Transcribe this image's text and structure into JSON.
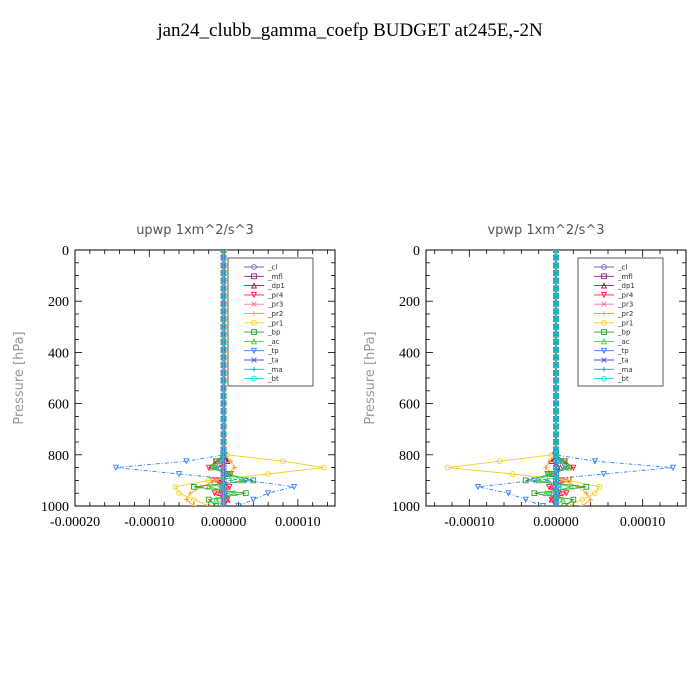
{
  "title": "jan24_clubb_gamma_coefp  BUDGET at245E,-2N",
  "legend_entries": [
    "_cl",
    "_mfl",
    "_dp1",
    "_pr4",
    "_pr3",
    "_pr2",
    "_pr1",
    "_bp",
    "_ac",
    "_tp",
    "_ta",
    "_ma",
    "_bt"
  ],
  "series_colors": {
    "_cl": "#7f5fbf",
    "_mfl": "#8b1a8b",
    "_dp1": "#b0103a",
    "_pr4": "#ff1f3f",
    "_pr3": "#ff6f9f",
    "_pr2": "#ffa030",
    "_pr1": "#f2d020",
    "_bp": "#20a020",
    "_ac": "#40d040",
    "_tp": "#2f80ff",
    "_ta": "#5050e0",
    "_ma": "#30a0c0",
    "_bt": "#00e0e0"
  },
  "chart_data": [
    {
      "type": "line",
      "title": "upwp   1xm^2/s^3",
      "ylabel": "Pressure [hPa]",
      "xlim": [
        -0.0002,
        0.00015
      ],
      "ylim": [
        1000,
        0
      ],
      "xticks": [
        -0.0002,
        -0.0001,
        0.0,
        0.0001
      ],
      "xtick_labels": [
        "-0.00020",
        "-0.00010",
        "0.00000",
        "0.00010"
      ],
      "yticks": [
        0,
        200,
        400,
        600,
        800,
        1000
      ],
      "ytick_labels": [
        "0",
        "200",
        "400",
        "600",
        "800",
        "1000"
      ],
      "legend_placement": "top-right",
      "y": [
        0,
        30,
        60,
        90,
        120,
        150,
        180,
        210,
        240,
        270,
        300,
        330,
        360,
        390,
        420,
        450,
        480,
        510,
        540,
        570,
        600,
        630,
        660,
        690,
        720,
        750,
        780,
        800,
        825,
        850,
        875,
        900,
        925,
        950,
        975,
        1000
      ],
      "series": [
        {
          "name": "_cl",
          "values": [
            0,
            0,
            0,
            0,
            0,
            0,
            0,
            0,
            0,
            0,
            0,
            0,
            0,
            0,
            0,
            0,
            0,
            0,
            0,
            0,
            0,
            0,
            0,
            0,
            0,
            0,
            0,
            0,
            0,
            0,
            0,
            0,
            0,
            0,
            0,
            0
          ]
        },
        {
          "name": "_mfl",
          "values": [
            0,
            0,
            0,
            0,
            0,
            0,
            0,
            0,
            0,
            0,
            0,
            0,
            0,
            0,
            0,
            0,
            0,
            0,
            0,
            0,
            0,
            0,
            0,
            0,
            0,
            0,
            0,
            0,
            0,
            0,
            0,
            0,
            0,
            0,
            0,
            0
          ]
        },
        {
          "name": "_dp1",
          "values": [
            0,
            0,
            0,
            0,
            0,
            0,
            0,
            0,
            0,
            0,
            0,
            0,
            0,
            0,
            0,
            0,
            0,
            0,
            0,
            0,
            0,
            0,
            0,
            0,
            0,
            0,
            0,
            0,
            5e-06,
            -5e-06,
            5e-06,
            -5e-06,
            5e-06,
            -5e-06,
            5e-06,
            0
          ]
        },
        {
          "name": "_pr4",
          "values": [
            0,
            0,
            0,
            0,
            0,
            0,
            0,
            0,
            0,
            0,
            0,
            0,
            0,
            0,
            0,
            0,
            0,
            0,
            0,
            0,
            0,
            0,
            0,
            0,
            0,
            0,
            0,
            2e-06,
            -1e-05,
            -2e-05,
            1e-05,
            -1.5e-05,
            8e-06,
            -1.2e-05,
            5e-06,
            0
          ]
        },
        {
          "name": "_pr3",
          "values": [
            0,
            0,
            0,
            0,
            0,
            0,
            0,
            0,
            0,
            0,
            0,
            0,
            0,
            0,
            0,
            0,
            0,
            0,
            0,
            0,
            0,
            0,
            0,
            0,
            0,
            0,
            0,
            0,
            -5e-06,
            -1e-05,
            5e-06,
            -8e-06,
            4e-06,
            -6e-06,
            3e-06,
            0
          ]
        },
        {
          "name": "_pr2",
          "values": [
            2e-06,
            2e-06,
            2e-06,
            2e-06,
            2e-06,
            2e-06,
            2e-06,
            2e-06,
            2e-06,
            2e-06,
            2e-06,
            2e-06,
            2e-06,
            2e-06,
            2e-06,
            2e-06,
            2e-06,
            2e-06,
            2e-06,
            2e-06,
            2e-06,
            2e-06,
            2e-06,
            2e-06,
            2e-06,
            2e-06,
            2e-06,
            3e-06,
            1e-05,
            1.5e-05,
            5e-06,
            -1e-05,
            -3e-05,
            -4.5e-05,
            -5e-05,
            -4e-05
          ]
        },
        {
          "name": "_pr1",
          "values": [
            0,
            0,
            0,
            0,
            0,
            0,
            0,
            0,
            0,
            0,
            0,
            0,
            0,
            0,
            0,
            0,
            0,
            0,
            0,
            0,
            0,
            0,
            0,
            0,
            0,
            0,
            0,
            5e-06,
            8e-05,
            0.000135,
            6e-05,
            -2e-05,
            -6.5e-05,
            -6e-05,
            -4e-05,
            -2e-05
          ]
        },
        {
          "name": "_bp",
          "values": [
            0,
            0,
            0,
            0,
            0,
            0,
            0,
            0,
            0,
            0,
            0,
            0,
            0,
            0,
            0,
            0,
            0,
            0,
            0,
            0,
            0,
            0,
            0,
            0,
            0,
            0,
            0,
            0,
            -1e-05,
            -1.5e-05,
            5e-06,
            4e-05,
            -4e-05,
            3e-05,
            -2e-05,
            -1e-05
          ]
        },
        {
          "name": "_ac",
          "values": [
            0,
            0,
            0,
            0,
            0,
            0,
            0,
            0,
            0,
            0,
            0,
            0,
            0,
            0,
            0,
            0,
            0,
            0,
            0,
            0,
            0,
            0,
            0,
            0,
            0,
            0,
            0,
            0,
            -5e-06,
            -1.5e-05,
            1e-05,
            2.5e-05,
            -2e-05,
            1.5e-05,
            -1e-05,
            0
          ]
        },
        {
          "name": "_tp",
          "values": [
            0,
            0,
            0,
            0,
            0,
            0,
            0,
            0,
            0,
            0,
            0,
            0,
            0,
            0,
            0,
            0,
            0,
            0,
            0,
            0,
            0,
            0,
            0,
            0,
            0,
            0,
            0,
            1e-06,
            -5e-05,
            -0.000145,
            -6e-05,
            3e-05,
            9.5e-05,
            6e-05,
            4e-05,
            2e-05
          ]
        },
        {
          "name": "_ta",
          "values": [
            0,
            0,
            0,
            0,
            0,
            0,
            0,
            0,
            0,
            0,
            0,
            0,
            0,
            0,
            0,
            0,
            0,
            0,
            0,
            0,
            0,
            0,
            0,
            0,
            0,
            0,
            0,
            0,
            0,
            0,
            0,
            0,
            0,
            0,
            0,
            0
          ]
        },
        {
          "name": "_ma",
          "values": [
            0,
            0,
            0,
            0,
            0,
            0,
            0,
            0,
            0,
            0,
            0,
            0,
            0,
            0,
            0,
            0,
            0,
            0,
            0,
            0,
            0,
            0,
            0,
            0,
            0,
            0,
            0,
            0,
            -5e-06,
            -1e-05,
            5e-06,
            1e-05,
            -5e-06,
            5e-06,
            0,
            0
          ]
        },
        {
          "name": "_bt",
          "values": [
            0,
            0,
            0,
            0,
            0,
            0,
            0,
            0,
            0,
            0,
            0,
            0,
            0,
            0,
            0,
            0,
            0,
            0,
            0,
            0,
            0,
            0,
            0,
            0,
            0,
            0,
            0,
            0,
            0,
            0,
            0,
            0,
            0,
            0,
            0,
            0
          ]
        }
      ]
    },
    {
      "type": "line",
      "title": "vpwp   1xm^2/s^3",
      "ylabel": "Pressure [hPa]",
      "xlim": [
        -0.00015,
        0.00015
      ],
      "ylim": [
        1000,
        0
      ],
      "xticks": [
        -0.0001,
        0.0,
        0.0001
      ],
      "xtick_labels": [
        "-0.00010",
        "0.00000",
        "0.00010"
      ],
      "yticks": [
        0,
        200,
        400,
        600,
        800,
        1000
      ],
      "ytick_labels": [
        "0",
        "200",
        "400",
        "600",
        "800",
        "1000"
      ],
      "legend_placement": "top-right",
      "y": [
        0,
        30,
        60,
        90,
        120,
        150,
        180,
        210,
        240,
        270,
        300,
        330,
        360,
        390,
        420,
        450,
        480,
        510,
        540,
        570,
        600,
        630,
        660,
        690,
        720,
        750,
        780,
        800,
        825,
        850,
        875,
        900,
        925,
        950,
        975,
        1000
      ],
      "series": [
        {
          "name": "_cl",
          "values": [
            0,
            0,
            0,
            0,
            0,
            0,
            0,
            0,
            0,
            0,
            0,
            0,
            0,
            0,
            0,
            0,
            0,
            0,
            0,
            0,
            0,
            0,
            0,
            0,
            0,
            0,
            0,
            0,
            0,
            0,
            0,
            0,
            0,
            0,
            0,
            0
          ]
        },
        {
          "name": "_mfl",
          "values": [
            0,
            0,
            0,
            0,
            0,
            0,
            0,
            0,
            0,
            0,
            0,
            0,
            0,
            0,
            0,
            0,
            0,
            0,
            0,
            0,
            0,
            0,
            0,
            0,
            0,
            0,
            0,
            0,
            0,
            0,
            0,
            0,
            0,
            0,
            0,
            0
          ]
        },
        {
          "name": "_dp1",
          "values": [
            0,
            0,
            0,
            0,
            0,
            0,
            0,
            0,
            0,
            0,
            0,
            0,
            0,
            0,
            0,
            0,
            0,
            0,
            0,
            0,
            0,
            0,
            0,
            0,
            0,
            0,
            0,
            0,
            -5e-06,
            5e-06,
            -5e-06,
            5e-06,
            -5e-06,
            5e-06,
            -5e-06,
            0
          ]
        },
        {
          "name": "_pr4",
          "values": [
            0,
            0,
            0,
            0,
            0,
            0,
            0,
            0,
            0,
            0,
            0,
            0,
            0,
            0,
            0,
            0,
            0,
            0,
            0,
            0,
            0,
            0,
            0,
            0,
            0,
            0,
            0,
            -2e-06,
            1e-05,
            2e-05,
            -1e-05,
            1.5e-05,
            -8e-06,
            1.2e-05,
            -5e-06,
            0
          ]
        },
        {
          "name": "_pr3",
          "values": [
            0,
            0,
            0,
            0,
            0,
            0,
            0,
            0,
            0,
            0,
            0,
            0,
            0,
            0,
            0,
            0,
            0,
            0,
            0,
            0,
            0,
            0,
            0,
            0,
            0,
            0,
            0,
            0,
            5e-06,
            1e-05,
            -5e-06,
            8e-06,
            -4e-06,
            6e-06,
            -3e-06,
            0
          ]
        },
        {
          "name": "_pr2",
          "values": [
            1e-06,
            1e-06,
            1e-06,
            1e-06,
            1e-06,
            1e-06,
            1e-06,
            1e-06,
            1e-06,
            1e-06,
            1e-06,
            1e-06,
            1e-06,
            1e-06,
            1e-06,
            1e-06,
            1e-06,
            1e-06,
            1e-06,
            1e-06,
            1e-06,
            1e-06,
            1e-06,
            1e-06,
            1e-06,
            1e-06,
            1e-06,
            2e-06,
            -8e-06,
            -1.2e-05,
            -4e-06,
            8e-06,
            2.5e-05,
            3.5e-05,
            4e-05,
            3e-05
          ]
        },
        {
          "name": "_pr1",
          "values": [
            0,
            0,
            0,
            0,
            0,
            0,
            0,
            0,
            0,
            0,
            0,
            0,
            0,
            0,
            0,
            0,
            0,
            0,
            0,
            0,
            0,
            0,
            0,
            0,
            0,
            0,
            0,
            -5e-06,
            -6.5e-05,
            -0.000125,
            -5e-05,
            1.5e-05,
            5e-05,
            4.5e-05,
            3e-05,
            1.5e-05
          ]
        },
        {
          "name": "_bp",
          "values": [
            0,
            0,
            0,
            0,
            0,
            0,
            0,
            0,
            0,
            0,
            0,
            0,
            0,
            0,
            0,
            0,
            0,
            0,
            0,
            0,
            0,
            0,
            0,
            0,
            0,
            0,
            0,
            0,
            1e-05,
            1.5e-05,
            -5e-06,
            -3.5e-05,
            3.5e-05,
            -2.5e-05,
            2e-05,
            1e-05
          ]
        },
        {
          "name": "_ac",
          "values": [
            0,
            0,
            0,
            0,
            0,
            0,
            0,
            0,
            0,
            0,
            0,
            0,
            0,
            0,
            0,
            0,
            0,
            0,
            0,
            0,
            0,
            0,
            0,
            0,
            0,
            0,
            0,
            0,
            5e-06,
            1.5e-05,
            -1e-05,
            -2e-05,
            1.8e-05,
            -1.2e-05,
            8e-06,
            0
          ]
        },
        {
          "name": "_tp",
          "values": [
            0,
            0,
            0,
            0,
            0,
            0,
            0,
            0,
            0,
            0,
            0,
            0,
            0,
            0,
            0,
            0,
            0,
            0,
            0,
            0,
            0,
            0,
            0,
            0,
            0,
            0,
            0,
            -1e-06,
            4.5e-05,
            0.000135,
            5.5e-05,
            -2.5e-05,
            -9e-05,
            -5.5e-05,
            -3.5e-05,
            -1.5e-05
          ]
        },
        {
          "name": "_ta",
          "values": [
            0,
            0,
            0,
            0,
            0,
            0,
            0,
            0,
            0,
            0,
            0,
            0,
            0,
            0,
            0,
            0,
            0,
            0,
            0,
            0,
            0,
            0,
            0,
            0,
            0,
            0,
            0,
            0,
            0,
            0,
            0,
            0,
            0,
            0,
            0,
            0
          ]
        },
        {
          "name": "_ma",
          "values": [
            0,
            0,
            0,
            0,
            0,
            0,
            0,
            0,
            0,
            0,
            0,
            0,
            0,
            0,
            0,
            0,
            0,
            0,
            0,
            0,
            0,
            0,
            0,
            0,
            0,
            0,
            0,
            0,
            5e-06,
            1e-05,
            -5e-06,
            -1e-05,
            5e-06,
            -5e-06,
            0,
            0
          ]
        },
        {
          "name": "_bt",
          "values": [
            0,
            0,
            0,
            0,
            0,
            0,
            0,
            0,
            0,
            0,
            0,
            0,
            0,
            0,
            0,
            0,
            0,
            0,
            0,
            0,
            0,
            0,
            0,
            0,
            0,
            0,
            0,
            0,
            0,
            0,
            0,
            0,
            0,
            0,
            0,
            0
          ]
        }
      ]
    }
  ]
}
